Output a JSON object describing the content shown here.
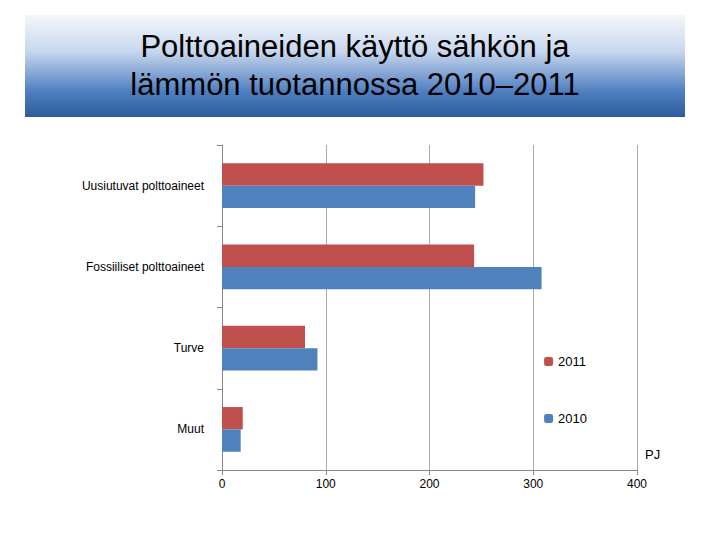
{
  "chart_data": {
    "type": "bar",
    "orientation": "horizontal",
    "title": "Polttoaineiden käyttö sähkön ja lämmön tuotannossa 2010–2011",
    "x_label": "PJ",
    "categories": [
      "Uusiutuvat polttoaineet",
      "Fossiiliset polttoaineet",
      "Turve",
      "Muut"
    ],
    "series": [
      {
        "name": "2011",
        "color": "#c0504d",
        "values": [
          252,
          243,
          80,
          20
        ]
      },
      {
        "name": "2010",
        "color": "#4f81bd",
        "values": [
          244,
          308,
          92,
          18
        ]
      }
    ],
    "xlim": [
      0,
      400
    ],
    "xticks": [
      0,
      100,
      200,
      300,
      400
    ],
    "grid": true,
    "legend": "right"
  }
}
